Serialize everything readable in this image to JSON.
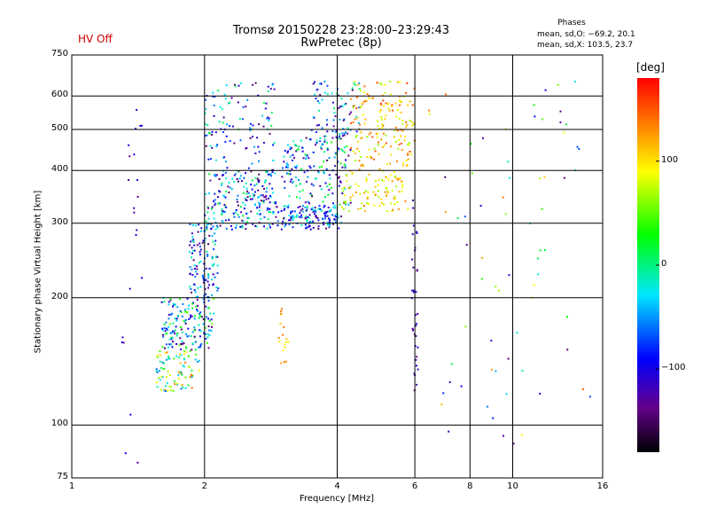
{
  "header": {
    "title_line1": "Tromsø 20150228 23:28:00–23:29:43",
    "title_line2": "RwPretec (8p)",
    "status": "HV Off",
    "status_color": "#cc0000",
    "stats_title": "Phases",
    "stats_line1": "mean, sd,O: −69.2, 20.1",
    "stats_line2": "mean, sd,X: 103.5, 23.7"
  },
  "colorbar": {
    "label": "[deg]",
    "ticks": [
      "100",
      "0",
      "−100"
    ],
    "tick_values": [
      100,
      0,
      -100
    ],
    "range": [
      -180,
      180
    ]
  },
  "chart_data": {
    "type": "scatter",
    "xlabel": "Frequency [MHz]",
    "ylabel": "Stationary phase Virtual Height [km]",
    "xscale": "log",
    "yscale": "log",
    "xlim": [
      1,
      16
    ],
    "ylim": [
      75,
      750
    ],
    "xticks": [
      1,
      2,
      4,
      6,
      8,
      10,
      16
    ],
    "xtick_labels": [
      "1",
      "2",
      "4",
      "6",
      "8",
      "10",
      "16"
    ],
    "yticks": [
      75,
      100,
      200,
      300,
      400,
      500,
      600,
      750
    ],
    "ytick_labels": [
      "75",
      "100",
      "200",
      "300",
      "400",
      "500",
      "600",
      "750"
    ],
    "grid": true,
    "color_variable": "phase [deg]",
    "clusters": [
      {
        "f": [
          1.55,
          1.95
        ],
        "h": [
          120,
          150
        ],
        "phase": [
          -60,
          150
        ],
        "count": 90
      },
      {
        "f": [
          1.6,
          2.1
        ],
        "h": [
          150,
          200
        ],
        "phase": [
          -150,
          60
        ],
        "count": 170
      },
      {
        "f": [
          1.85,
          2.15
        ],
        "h": [
          200,
          300
        ],
        "phase": [
          -150,
          0
        ],
        "count": 120
      },
      {
        "f": [
          2.0,
          2.9
        ],
        "h": [
          290,
          400
        ],
        "phase": [
          -150,
          20
        ],
        "count": 220
      },
      {
        "f": [
          2.0,
          2.9
        ],
        "h": [
          400,
          650
        ],
        "phase": [
          -150,
          20
        ],
        "count": 110
      },
      {
        "f": [
          2.9,
          4.1
        ],
        "h": [
          290,
          330
        ],
        "phase": [
          -150,
          0
        ],
        "count": 150
      },
      {
        "f": [
          3.0,
          4.3
        ],
        "h": [
          330,
          480
        ],
        "phase": [
          -150,
          40
        ],
        "count": 170
      },
      {
        "f": [
          3.5,
          4.5
        ],
        "h": [
          480,
          650
        ],
        "phase": [
          -150,
          10
        ],
        "count": 80
      },
      {
        "f": [
          4.1,
          5.8
        ],
        "h": [
          320,
          420
        ],
        "phase": [
          60,
          140
        ],
        "count": 110
      },
      {
        "f": [
          4.3,
          6.0
        ],
        "h": [
          420,
          650
        ],
        "phase": [
          60,
          160
        ],
        "count": 160
      },
      {
        "f": [
          2.95,
          3.1
        ],
        "h": [
          140,
          190
        ],
        "phase": [
          80,
          140
        ],
        "count": 18
      },
      {
        "f": [
          1.3,
          1.45
        ],
        "h": [
          80,
          600
        ],
        "phase": [
          -140,
          -90
        ],
        "count": 22
      },
      {
        "f": [
          5.9,
          6.1
        ],
        "h": [
          120,
          350
        ],
        "phase": [
          -140,
          -100
        ],
        "count": 35
      },
      {
        "f": [
          6.4,
          15.0
        ],
        "h": [
          90,
          650
        ],
        "phase": [
          -150,
          150
        ],
        "count": 70
      }
    ]
  }
}
